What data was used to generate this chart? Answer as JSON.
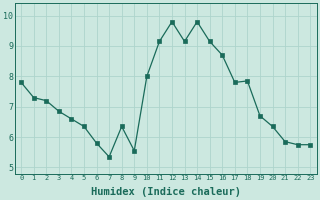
{
  "x": [
    0,
    1,
    2,
    3,
    4,
    5,
    6,
    7,
    8,
    9,
    10,
    11,
    12,
    13,
    14,
    15,
    16,
    17,
    18,
    19,
    20,
    21,
    22,
    23
  ],
  "y": [
    7.8,
    7.3,
    7.2,
    6.85,
    6.6,
    6.35,
    5.8,
    5.35,
    6.35,
    5.55,
    8.0,
    9.15,
    9.8,
    9.15,
    9.8,
    9.15,
    8.7,
    7.8,
    7.85,
    6.7,
    6.35,
    5.85,
    5.75,
    5.75
  ],
  "xlabel": "Humidex (Indice chaleur)",
  "ylim": [
    4.8,
    10.4
  ],
  "xlim": [
    -0.5,
    23.5
  ],
  "yticks": [
    5,
    6,
    7,
    8,
    9,
    10
  ],
  "xticks": [
    0,
    1,
    2,
    3,
    4,
    5,
    6,
    7,
    8,
    9,
    10,
    11,
    12,
    13,
    14,
    15,
    16,
    17,
    18,
    19,
    20,
    21,
    22,
    23
  ],
  "line_color": "#1a6b5a",
  "marker_color": "#1a6b5a",
  "bg_color": "#cce8e0",
  "grid_color": "#aed4cc",
  "tick_color": "#1a6b5a",
  "font_size_tick_x": 5.0,
  "font_size_tick_y": 6.0,
  "font_size_label": 7.5,
  "linewidth": 0.9,
  "markersize": 2.2
}
